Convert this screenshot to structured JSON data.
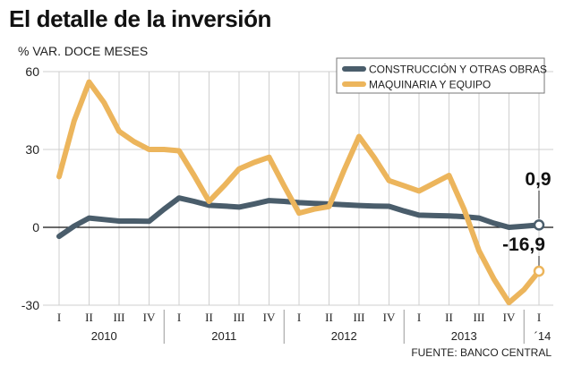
{
  "chart_data": {
    "type": "line",
    "title": "El detalle de la inversión",
    "ylabel": "% VAR. DOCE MESES",
    "xlabel": "",
    "source": "FUENTE: BANCO CENTRAL",
    "ylim": [
      -30,
      60
    ],
    "yticks": [
      60,
      30,
      0,
      -30
    ],
    "grid": true,
    "legend_position": "top-right",
    "quarter_labels": [
      "I",
      "II",
      "III",
      "IV",
      "I",
      "II",
      "III",
      "IV",
      "I",
      "II",
      "III",
      "IV",
      "I",
      "II",
      "III",
      "IV",
      "I"
    ],
    "year_labels": [
      {
        "label": "2010",
        "first_index": 0,
        "last_index": 3
      },
      {
        "label": "2011",
        "first_index": 4,
        "last_index": 7
      },
      {
        "label": "2012",
        "first_index": 8,
        "last_index": 11
      },
      {
        "label": "2013",
        "first_index": 12,
        "last_index": 15
      },
      {
        "label": "´14",
        "first_index": 16,
        "last_index": 16
      }
    ],
    "x": [
      0,
      0.5,
      1,
      1.5,
      2,
      2.5,
      3,
      3.5,
      4,
      4.5,
      5,
      5.5,
      6,
      6.5,
      7,
      7.5,
      8,
      8.5,
      9,
      9.5,
      10,
      10.5,
      11,
      11.5,
      12,
      12.5,
      13,
      13.5,
      14,
      14.5,
      15,
      15.5,
      16
    ],
    "series": [
      {
        "name": "CONSTRUCCIÓN Y OTRAS OBRAS",
        "color": "#4a5d6b",
        "values": [
          -3.5,
          0.5,
          3.6,
          3.0,
          2.4,
          2.4,
          2.3,
          7.0,
          11.3,
          10.0,
          8.5,
          8.2,
          7.8,
          9.0,
          10.3,
          10.0,
          9.5,
          9.2,
          9.0,
          8.7,
          8.4,
          8.2,
          8.1,
          6.3,
          4.7,
          4.5,
          4.4,
          4.1,
          3.6,
          1.6,
          0.0,
          0.4,
          0.9
        ]
      },
      {
        "name": "MAQUINARIA Y EQUIPO",
        "color": "#ecb55c",
        "values": [
          19.5,
          41,
          56,
          48,
          37,
          33,
          30,
          30,
          29.5,
          20,
          10,
          16,
          22.5,
          25,
          27,
          16,
          5.5,
          7,
          8,
          22,
          35,
          27,
          18,
          16,
          14,
          17,
          20,
          7,
          -9,
          -20,
          -29,
          -24,
          -16.9
        ]
      }
    ],
    "annotations": [
      {
        "text": "0,9",
        "series": 0,
        "value": 0.9,
        "x": 16
      },
      {
        "text": "-16,9",
        "series": 1,
        "value": -16.9,
        "x": 16
      }
    ]
  }
}
